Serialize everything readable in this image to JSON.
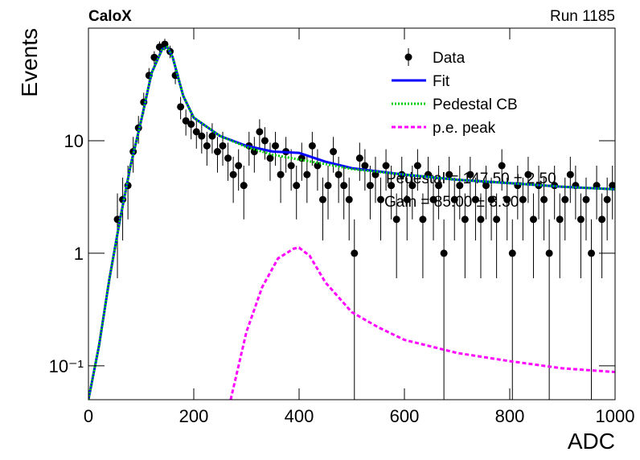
{
  "chart_data": {
    "type": "scatter",
    "title": "CaloX",
    "subtitle": "Run 1185",
    "x_label": "ADC",
    "y_label": "Events",
    "log_y": true,
    "xlim": [
      0,
      1000
    ],
    "ylim": [
      0.05,
      100
    ],
    "xticks": [
      0,
      200,
      400,
      600,
      800,
      1000
    ],
    "yticks": [
      {
        "value": 0.1,
        "label": "10⁻¹"
      },
      1,
      10
    ],
    "annotations": [
      "Pedestal = 147.50 ± 2.50",
      "Gain = 85.00 ± 3.30"
    ],
    "series": [
      {
        "name": "Data",
        "color": "#000000",
        "style": "points",
        "x": [
          5,
          15,
          25,
          35,
          45,
          55,
          65,
          75,
          85,
          95,
          105,
          115,
          125,
          135,
          145,
          155,
          165,
          175,
          185,
          195,
          205,
          215,
          225,
          235,
          245,
          255,
          265,
          275,
          285,
          295,
          305,
          315,
          325,
          335,
          345,
          355,
          365,
          375,
          385,
          395,
          405,
          415,
          425,
          435,
          445,
          455,
          465,
          475,
          485,
          495,
          505,
          515,
          525,
          535,
          545,
          555,
          565,
          575,
          585,
          595,
          605,
          615,
          625,
          635,
          645,
          655,
          665,
          675,
          685,
          695,
          705,
          715,
          725,
          735,
          745,
          755,
          765,
          775,
          785,
          795,
          805,
          815,
          825,
          835,
          845,
          855,
          865,
          875,
          885,
          895,
          905,
          915,
          925,
          935,
          945,
          955,
          965,
          975,
          985,
          995
        ],
        "values": [
          null,
          null,
          null,
          null,
          null,
          2,
          3,
          4,
          8,
          13,
          22,
          38,
          55,
          68,
          72,
          62,
          38,
          20,
          15,
          14,
          12,
          11,
          9,
          11,
          8,
          9,
          7,
          5,
          6,
          4,
          9,
          8,
          12,
          10,
          7,
          9,
          5,
          8,
          6,
          4,
          7,
          5,
          9,
          6,
          3,
          4,
          8,
          5,
          4,
          3,
          1,
          7,
          6,
          4,
          5,
          3,
          6,
          4,
          2,
          5,
          3,
          4,
          6,
          2,
          5,
          3,
          4,
          1,
          5,
          3,
          4,
          2,
          5,
          3,
          2,
          4,
          3,
          2,
          6,
          3,
          1,
          4,
          3,
          5,
          2,
          4,
          3,
          1,
          4,
          2,
          3,
          5,
          4,
          2,
          3,
          1,
          4,
          2,
          3,
          4
        ],
        "errors": [
          null,
          null,
          null,
          null,
          null,
          1.4,
          1.7,
          2,
          2.8,
          3.6,
          4.7,
          6.2,
          7.4,
          8.2,
          8.5,
          7.9,
          6.2,
          4.5,
          3.9,
          3.7,
          3.5,
          3.3,
          3,
          3.3,
          2.8,
          3,
          2.6,
          2.2,
          2.4,
          2,
          3,
          2.8,
          3.5,
          3.2,
          2.6,
          3,
          2.2,
          2.8,
          2.4,
          2,
          2.6,
          2.2,
          3,
          2.4,
          1.7,
          2,
          2.8,
          2.2,
          2,
          1.7,
          1,
          2.6,
          2.4,
          2,
          2.2,
          1.7,
          2.4,
          2,
          1.4,
          2.2,
          1.7,
          2,
          2.4,
          1.4,
          2.2,
          1.7,
          2,
          1,
          2.2,
          1.7,
          2,
          1.4,
          2.2,
          1.7,
          1.4,
          2,
          1.7,
          1.4,
          2.4,
          1.7,
          1,
          2,
          1.7,
          2.2,
          1.4,
          2,
          1.7,
          1,
          2,
          1.4,
          1.7,
          2.2,
          2,
          1.4,
          1.7,
          1,
          2,
          1.4,
          1.7,
          2
        ]
      },
      {
        "name": "Fit",
        "color": "#0000ff",
        "style": "solid",
        "x": [
          0,
          20,
          40,
          60,
          80,
          100,
          120,
          140,
          150,
          160,
          180,
          200,
          250,
          300,
          350,
          400,
          450,
          500,
          600,
          700,
          800,
          900,
          1000
        ],
        "values": [
          0.05,
          0.15,
          0.6,
          2,
          6,
          15,
          40,
          65,
          68,
          55,
          25,
          16,
          11,
          9,
          8,
          7.8,
          6.5,
          5.7,
          5,
          4.5,
          4.2,
          3.9,
          3.7
        ]
      },
      {
        "name": "Pedestal CB",
        "color": "#00cc00",
        "style": "dotted",
        "x": [
          0,
          20,
          40,
          60,
          80,
          100,
          120,
          140,
          150,
          160,
          180,
          200,
          250,
          300,
          350,
          400,
          450,
          500,
          600,
          700,
          800,
          900,
          1000
        ],
        "values": [
          0.05,
          0.15,
          0.6,
          2,
          6,
          15,
          40,
          65,
          68,
          55,
          25,
          16,
          11,
          8.8,
          7.5,
          6.8,
          6.2,
          5.6,
          5,
          4.5,
          4.2,
          3.9,
          3.7
        ]
      },
      {
        "name": "p.e. peak",
        "color": "#ff00ff",
        "style": "dashed",
        "x": [
          270,
          300,
          330,
          360,
          390,
          400,
          420,
          450,
          500,
          550,
          600,
          700,
          800,
          900,
          1000
        ],
        "values": [
          0.05,
          0.2,
          0.5,
          0.9,
          1.1,
          1.12,
          0.95,
          0.55,
          0.3,
          0.22,
          0.17,
          0.13,
          0.11,
          0.095,
          0.088
        ]
      }
    ]
  }
}
